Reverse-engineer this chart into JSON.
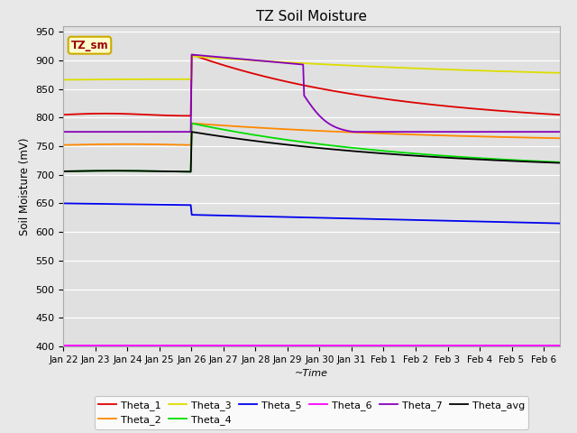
{
  "title": "TZ Soil Moisture",
  "xlabel": "~Time",
  "ylabel": "Soil Moisture (mV)",
  "ylim": [
    400,
    960
  ],
  "yticks": [
    400,
    450,
    500,
    550,
    600,
    650,
    700,
    750,
    800,
    850,
    900,
    950
  ],
  "background_color": "#e8e8e8",
  "plot_bg_color": "#e0e0e0",
  "legend_label": "TZ_sm",
  "legend_box_color": "#ffffcc",
  "legend_box_border": "#ccaa00",
  "series": {
    "Theta_1": {
      "color": "#dd0000",
      "lw": 1.3
    },
    "Theta_2": {
      "color": "#ff8800",
      "lw": 1.3
    },
    "Theta_3": {
      "color": "#dddd00",
      "lw": 1.3
    },
    "Theta_4": {
      "color": "#00dd00",
      "lw": 1.3
    },
    "Theta_5": {
      "color": "#0000ee",
      "lw": 1.3
    },
    "Theta_6": {
      "color": "#ff00ff",
      "lw": 1.3
    },
    "Theta_7": {
      "color": "#8800bb",
      "lw": 1.3
    },
    "Theta_avg": {
      "color": "#000000",
      "lw": 1.3
    }
  },
  "x_dates": [
    "Jan 22",
    "Jan 23",
    "Jan 24",
    "Jan 25",
    "Jan 26",
    "Jan 27",
    "Jan 28",
    "Jan 29",
    "Jan 30",
    "Jan 31",
    "Feb 1",
    "Feb 2",
    "Feb 3",
    "Feb 4",
    "Feb 5",
    "Feb 6"
  ],
  "n_points": 500,
  "date_range_days": 15.5
}
